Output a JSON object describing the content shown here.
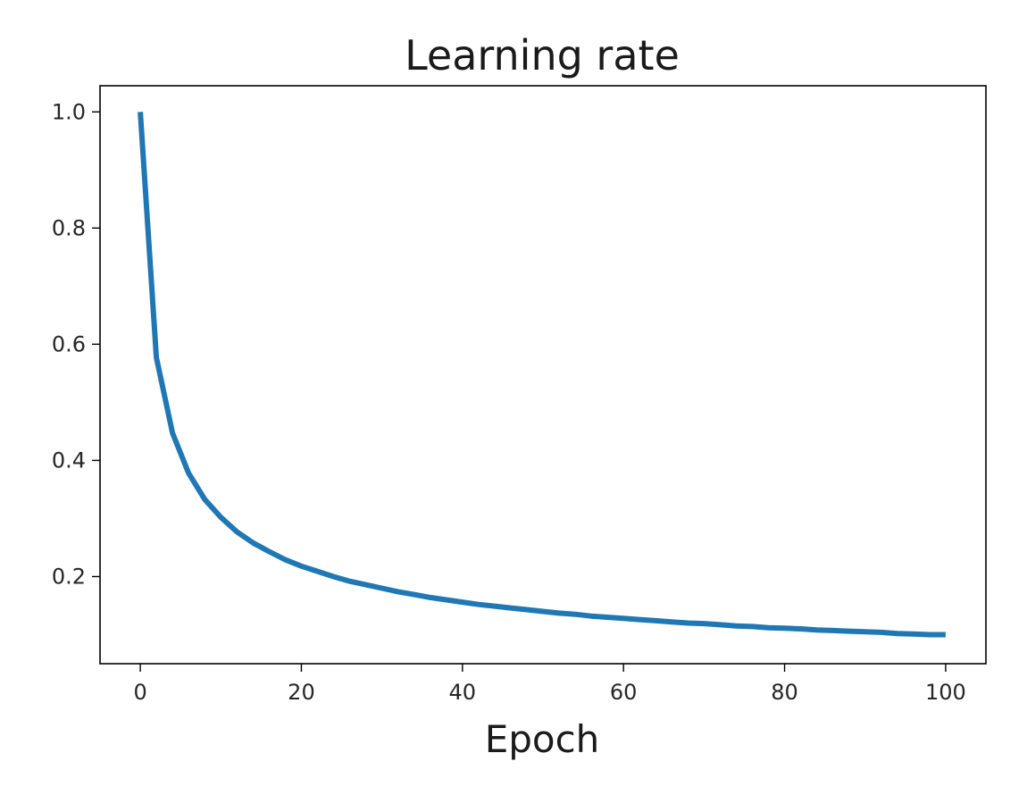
{
  "chart_data": {
    "type": "line",
    "title": "Learning rate",
    "xlabel": "Epoch",
    "ylabel": "",
    "xlim": [
      -5,
      105
    ],
    "ylim": [
      0.05,
      1.045
    ],
    "xticks": [
      0,
      20,
      40,
      60,
      80,
      100
    ],
    "yticks": [
      0.2,
      0.4,
      0.6,
      0.8,
      1.0
    ],
    "ytick_labels": [
      "0.2",
      "0.4",
      "0.6",
      "0.8",
      "1.0"
    ],
    "grid": false,
    "legend": "none",
    "series": [
      {
        "color": "#1f77b4",
        "x": [
          0,
          2,
          4,
          6,
          8,
          10,
          12,
          14,
          16,
          18,
          20,
          22,
          24,
          26,
          28,
          30,
          32,
          34,
          36,
          38,
          40,
          42,
          44,
          46,
          48,
          50,
          52,
          54,
          56,
          58,
          60,
          62,
          64,
          66,
          68,
          70,
          72,
          74,
          76,
          78,
          80,
          82,
          84,
          86,
          88,
          90,
          92,
          94,
          96,
          98,
          100
        ],
        "y": [
          1.0,
          0.577,
          0.447,
          0.378,
          0.333,
          0.302,
          0.277,
          0.258,
          0.243,
          0.229,
          0.218,
          0.209,
          0.2,
          0.192,
          0.186,
          0.18,
          0.174,
          0.169,
          0.164,
          0.16,
          0.156,
          0.152,
          0.149,
          0.146,
          0.143,
          0.14,
          0.137,
          0.135,
          0.132,
          0.13,
          0.128,
          0.126,
          0.124,
          0.122,
          0.12,
          0.119,
          0.117,
          0.115,
          0.114,
          0.112,
          0.111,
          0.11,
          0.108,
          0.107,
          0.106,
          0.105,
          0.104,
          0.102,
          0.101,
          0.1,
          0.1
        ]
      }
    ]
  }
}
